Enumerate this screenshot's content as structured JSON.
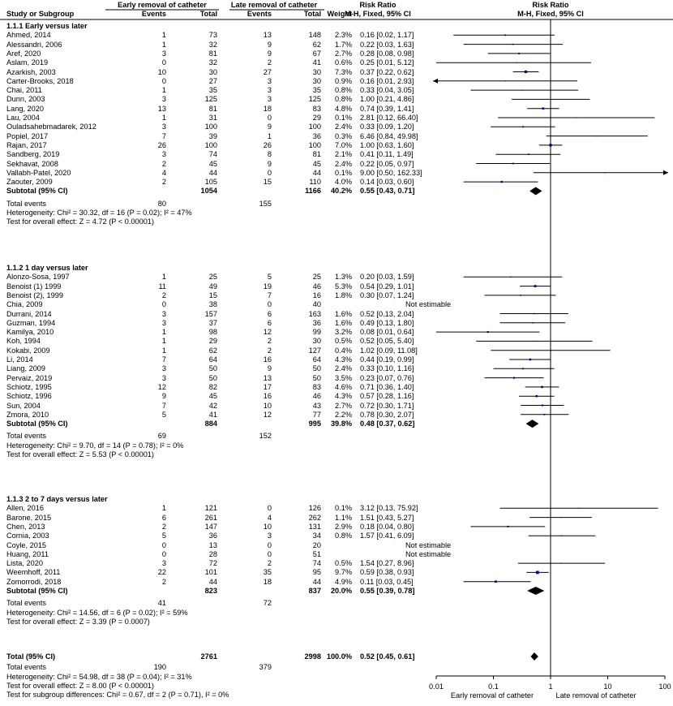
{
  "header": {
    "early_group": "Early removal of catheter",
    "late_group": "Late removal of catheter",
    "rr_col1": "Risk Ratio",
    "rr_col2": "Risk Ratio",
    "study_col": "Study or Subgroup",
    "events": "Events",
    "total": "Total",
    "events2": "Events",
    "total2": "Total",
    "weight": "Weight",
    "method1": "M-H, Fixed, 95% CI",
    "method2": "M-H, Fixed, 95% CI"
  },
  "subgroups": [
    {
      "title": "1.1.1 Early versus later",
      "studies": [
        {
          "name": "Ahmed, 2014",
          "e1": "1",
          "n1": "73",
          "e2": "13",
          "n2": "148",
          "w": "2.3%",
          "ci": "0.16 [0.02, 1.17]",
          "rr": 0.16,
          "lo": 0.02,
          "hi": 1.17
        },
        {
          "name": "Alessandri, 2006",
          "e1": "1",
          "n1": "32",
          "e2": "9",
          "n2": "62",
          "w": "1.7%",
          "ci": "0.22 [0.03, 1.63]",
          "rr": 0.22,
          "lo": 0.03,
          "hi": 1.63
        },
        {
          "name": "Aref, 2020",
          "e1": "3",
          "n1": "81",
          "e2": "9",
          "n2": "67",
          "w": "2.7%",
          "ci": "0.28 [0.08, 0.98]",
          "rr": 0.28,
          "lo": 0.08,
          "hi": 0.98
        },
        {
          "name": "Aslam, 2019",
          "e1": "0",
          "n1": "32",
          "e2": "2",
          "n2": "41",
          "w": "0.6%",
          "ci": "0.25 [0.01, 5.12]",
          "rr": 0.25,
          "lo": 0.01,
          "hi": 5.12
        },
        {
          "name": "Azarkish, 2003",
          "e1": "10",
          "n1": "30",
          "e2": "27",
          "n2": "30",
          "w": "7.3%",
          "ci": "0.37 [0.22, 0.62]",
          "rr": 0.37,
          "lo": 0.22,
          "hi": 0.62
        },
        {
          "name": "Carter-Brooks, 2018",
          "e1": "0",
          "n1": "27",
          "e2": "3",
          "n2": "30",
          "w": "0.9%",
          "ci": "0.16 [0.01, 2.93]",
          "rr": 0.16,
          "lo": 0.01,
          "hi": 2.93,
          "arrowLeft": true
        },
        {
          "name": "Chai, 2011",
          "e1": "1",
          "n1": "35",
          "e2": "3",
          "n2": "35",
          "w": "0.8%",
          "ci": "0.33 [0.04, 3.05]",
          "rr": 0.33,
          "lo": 0.04,
          "hi": 3.05
        },
        {
          "name": "Dunn, 2003",
          "e1": "3",
          "n1": "125",
          "e2": "3",
          "n2": "125",
          "w": "0.8%",
          "ci": "1.00 [0.21, 4.86]",
          "rr": 1.0,
          "lo": 0.21,
          "hi": 4.86
        },
        {
          "name": "Lang, 2020",
          "e1": "13",
          "n1": "81",
          "e2": "18",
          "n2": "83",
          "w": "4.8%",
          "ci": "0.74 [0.39, 1.41]",
          "rr": 0.74,
          "lo": 0.39,
          "hi": 1.41
        },
        {
          "name": "Lau, 2004",
          "e1": "1",
          "n1": "31",
          "e2": "0",
          "n2": "29",
          "w": "0.1%",
          "ci": "2.81 [0.12, 66.40]",
          "rr": 2.81,
          "lo": 0.12,
          "hi": 66.4
        },
        {
          "name": "Ouladsahebmadarek, 2012",
          "e1": "3",
          "n1": "100",
          "e2": "9",
          "n2": "100",
          "w": "2.4%",
          "ci": "0.33 [0.09, 1.20]",
          "rr": 0.33,
          "lo": 0.09,
          "hi": 1.2
        },
        {
          "name": "Popiel, 2017",
          "e1": "7",
          "n1": "39",
          "e2": "1",
          "n2": "36",
          "w": "0.3%",
          "ci": "6.46 [0.84, 49.98]",
          "rr": 6.46,
          "lo": 0.84,
          "hi": 49.98
        },
        {
          "name": "Rajan, 2017",
          "e1": "26",
          "n1": "100",
          "e2": "26",
          "n2": "100",
          "w": "7.0%",
          "ci": "1.00 [0.63, 1.60]",
          "rr": 1.0,
          "lo": 0.63,
          "hi": 1.6
        },
        {
          "name": "Sandberg, 2019",
          "e1": "3",
          "n1": "74",
          "e2": "8",
          "n2": "81",
          "w": "2.1%",
          "ci": "0.41 [0.11, 1.49]",
          "rr": 0.41,
          "lo": 0.11,
          "hi": 1.49
        },
        {
          "name": "Sekhavat, 2008",
          "e1": "2",
          "n1": "45",
          "e2": "9",
          "n2": "45",
          "w": "2.4%",
          "ci": "0.22 [0.05, 0.97]",
          "rr": 0.22,
          "lo": 0.05,
          "hi": 0.97
        },
        {
          "name": "Vallabh-Patel, 2020",
          "e1": "4",
          "n1": "44",
          "e2": "0",
          "n2": "44",
          "w": "0.1%",
          "ci": "9.00 [0.50, 162.33]",
          "rr": 9.0,
          "lo": 0.5,
          "hi": 162.33,
          "arrowRight": true
        },
        {
          "name": "Zaouter, 2009",
          "e1": "2",
          "n1": "105",
          "e2": "15",
          "n2": "110",
          "w": "4.0%",
          "ci": "0.14 [0.03, 0.60]",
          "rr": 0.14,
          "lo": 0.03,
          "hi": 0.6
        }
      ],
      "subtotal": {
        "label": "Subtotal (95% CI)",
        "n1": "1054",
        "n2": "1166",
        "w": "40.2%",
        "ci": "0.55 [0.43, 0.71]",
        "rr": 0.55,
        "lo": 0.43,
        "hi": 0.71
      },
      "events": {
        "label": "Total events",
        "e1": "80",
        "e2": "155"
      },
      "het": "Heterogeneity: Chi² = 30.32, df = 16 (P = 0.02); I² = 47%",
      "test": "Test for overall effect: Z = 4.72 (P < 0.00001)"
    },
    {
      "title": "1.1.2 1 day versus later",
      "studies": [
        {
          "name": "Alonzo-Sosa, 1997",
          "e1": "1",
          "n1": "25",
          "e2": "5",
          "n2": "25",
          "w": "1.3%",
          "ci": "0.20 [0.03, 1.59]",
          "rr": 0.2,
          "lo": 0.03,
          "hi": 1.59
        },
        {
          "name": "Benoist (1) 1999",
          "e1": "11",
          "n1": "49",
          "e2": "19",
          "n2": "46",
          "w": "5.3%",
          "ci": "0.54 [0.29, 1.01]",
          "rr": 0.54,
          "lo": 0.29,
          "hi": 1.01
        },
        {
          "name": "Benoist (2), 1999",
          "e1": "2",
          "n1": "15",
          "e2": "7",
          "n2": "16",
          "w": "1.8%",
          "ci": "0.30 [0.07, 1.24]",
          "rr": 0.3,
          "lo": 0.07,
          "hi": 1.24
        },
        {
          "name": "Chia, 2009",
          "e1": "0",
          "n1": "38",
          "e2": "0",
          "n2": "40",
          "w": "",
          "ci": "Not estimable"
        },
        {
          "name": "Durrani, 2014",
          "e1": "3",
          "n1": "157",
          "e2": "6",
          "n2": "163",
          "w": "1.6%",
          "ci": "0.52 [0.13, 2.04]",
          "rr": 0.52,
          "lo": 0.13,
          "hi": 2.04
        },
        {
          "name": "Guzman, 1994",
          "e1": "3",
          "n1": "37",
          "e2": "6",
          "n2": "36",
          "w": "1.6%",
          "ci": "0.49 [0.13, 1.80]",
          "rr": 0.49,
          "lo": 0.13,
          "hi": 1.8
        },
        {
          "name": "Kamilya, 2010",
          "e1": "1",
          "n1": "98",
          "e2": "12",
          "n2": "99",
          "w": "3.2%",
          "ci": "0.08 [0.01, 0.64]",
          "rr": 0.08,
          "lo": 0.01,
          "hi": 0.64
        },
        {
          "name": "Koh, 1994",
          "e1": "1",
          "n1": "29",
          "e2": "2",
          "n2": "30",
          "w": "0.5%",
          "ci": "0.52 [0.05, 5.40]",
          "rr": 0.52,
          "lo": 0.05,
          "hi": 5.4
        },
        {
          "name": "Kokabi, 2009",
          "e1": "1",
          "n1": "62",
          "e2": "2",
          "n2": "127",
          "w": "0.4%",
          "ci": "1.02 [0.09, 11.08]",
          "rr": 1.02,
          "lo": 0.09,
          "hi": 11.08
        },
        {
          "name": "Li, 2014",
          "e1": "7",
          "n1": "64",
          "e2": "16",
          "n2": "64",
          "w": "4.3%",
          "ci": "0.44 [0.19, 0.99]",
          "rr": 0.44,
          "lo": 0.19,
          "hi": 0.99
        },
        {
          "name": "Liang, 2009",
          "e1": "3",
          "n1": "50",
          "e2": "9",
          "n2": "50",
          "w": "2.4%",
          "ci": "0.33 [0.10, 1.16]",
          "rr": 0.33,
          "lo": 0.1,
          "hi": 1.16
        },
        {
          "name": "Pervaiz, 2019",
          "e1": "3",
          "n1": "50",
          "e2": "13",
          "n2": "50",
          "w": "3.5%",
          "ci": "0.23 [0.07, 0.76]",
          "rr": 0.23,
          "lo": 0.07,
          "hi": 0.76
        },
        {
          "name": "Schiotz, 1995",
          "e1": "12",
          "n1": "82",
          "e2": "17",
          "n2": "83",
          "w": "4.6%",
          "ci": "0.71 [0.36, 1.40]",
          "rr": 0.71,
          "lo": 0.36,
          "hi": 1.4
        },
        {
          "name": "Schiotz, 1996",
          "e1": "9",
          "n1": "45",
          "e2": "16",
          "n2": "46",
          "w": "4.3%",
          "ci": "0.57 [0.28, 1.16]",
          "rr": 0.57,
          "lo": 0.28,
          "hi": 1.16
        },
        {
          "name": "Sun, 2004",
          "e1": "7",
          "n1": "42",
          "e2": "10",
          "n2": "43",
          "w": "2.7%",
          "ci": "0.72 [0.30, 1.71]",
          "rr": 0.72,
          "lo": 0.3,
          "hi": 1.71
        },
        {
          "name": "Zmora, 2010",
          "e1": "5",
          "n1": "41",
          "e2": "12",
          "n2": "77",
          "w": "2.2%",
          "ci": "0.78 [0.30, 2.07]",
          "rr": 0.78,
          "lo": 0.3,
          "hi": 2.07
        }
      ],
      "subtotal": {
        "label": "Subtotal (95% CI)",
        "n1": "884",
        "n2": "995",
        "w": "39.8%",
        "ci": "0.48 [0.37, 0.62]",
        "rr": 0.48,
        "lo": 0.37,
        "hi": 0.62
      },
      "events": {
        "label": "Total events",
        "e1": "69",
        "e2": "152"
      },
      "het": "Heterogeneity: Chi² = 9.70, df = 14 (P = 0.78); I² = 0%",
      "test": "Test for overall effect: Z = 5.53 (P < 0.00001)"
    },
    {
      "title": "1.1.3 2 to 7 days versus later",
      "studies": [
        {
          "name": "Allen, 2016",
          "e1": "1",
          "n1": "121",
          "e2": "0",
          "n2": "126",
          "w": "0.1%",
          "ci": "3.12 [0.13, 75.92]",
          "rr": 3.12,
          "lo": 0.13,
          "hi": 75.92
        },
        {
          "name": "Barone, 2015",
          "e1": "6",
          "n1": "261",
          "e2": "4",
          "n2": "262",
          "w": "1.1%",
          "ci": "1.51 [0.43, 5.27]",
          "rr": 1.51,
          "lo": 0.43,
          "hi": 5.27
        },
        {
          "name": "Chen, 2013",
          "e1": "2",
          "n1": "147",
          "e2": "10",
          "n2": "131",
          "w": "2.9%",
          "ci": "0.18 [0.04, 0.80]",
          "rr": 0.18,
          "lo": 0.04,
          "hi": 0.8
        },
        {
          "name": "Cornia, 2003",
          "e1": "5",
          "n1": "36",
          "e2": "3",
          "n2": "34",
          "w": "0.8%",
          "ci": "1.57 [0.41, 6.09]",
          "rr": 1.57,
          "lo": 0.41,
          "hi": 6.09
        },
        {
          "name": "Coyle, 2015",
          "e1": "0",
          "n1": "13",
          "e2": "0",
          "n2": "20",
          "w": "",
          "ci": "Not estimable"
        },
        {
          "name": "Huang, 2011",
          "e1": "0",
          "n1": "28",
          "e2": "0",
          "n2": "51",
          "w": "",
          "ci": "Not estimable"
        },
        {
          "name": "Lista, 2020",
          "e1": "3",
          "n1": "72",
          "e2": "2",
          "n2": "74",
          "w": "0.5%",
          "ci": "1.54 [0.27, 8.96]",
          "rr": 1.54,
          "lo": 0.27,
          "hi": 8.96
        },
        {
          "name": "Weemhoff, 2011",
          "e1": "22",
          "n1": "101",
          "e2": "35",
          "n2": "95",
          "w": "9.7%",
          "ci": "0.59 [0.38, 0.93]",
          "rr": 0.59,
          "lo": 0.38,
          "hi": 0.93
        },
        {
          "name": "Zomorrodi, 2018",
          "e1": "2",
          "n1": "44",
          "e2": "18",
          "n2": "44",
          "w": "4.9%",
          "ci": "0.11 [0.03, 0.45]",
          "rr": 0.11,
          "lo": 0.03,
          "hi": 0.45
        }
      ],
      "subtotal": {
        "label": "Subtotal (95% CI)",
        "n1": "823",
        "n2": "837",
        "w": "20.0%",
        "ci": "0.55 [0.39, 0.78]",
        "rr": 0.55,
        "lo": 0.39,
        "hi": 0.78
      },
      "events": {
        "label": "Total events",
        "e1": "41",
        "e2": "72"
      },
      "het": "Heterogeneity: Chi² = 14.56, df = 6 (P = 0.02); I² = 59%",
      "test": "Test for overall effect: Z = 3.39 (P = 0.0007)"
    }
  ],
  "total": {
    "label": "Total (95% CI)",
    "n1": "2761",
    "n2": "2998",
    "w": "100.0%",
    "ci": "0.52 [0.45, 0.61]",
    "rr": 0.52,
    "lo": 0.45,
    "hi": 0.61
  },
  "total_events": {
    "label": "Total events",
    "e1": "190",
    "e2": "379"
  },
  "total_het": "Heterogeneity: Chi² = 54.98, df = 38 (P = 0.04); I² = 31%",
  "total_test": "Test for overall effect: Z = 8.00 (P < 0.00001)",
  "subgroup_test": "Test for subgroup differences: Chi² = 0.67, df = 2 (P = 0.71), I² = 0%",
  "axis": {
    "ticks": [
      "0.01",
      "0.1",
      "1",
      "10",
      "100"
    ],
    "left_label": "Early removal of catheter",
    "right_label": "Late removal of catheter"
  },
  "chart_data": {
    "type": "forest",
    "scale": "log",
    "xlim": [
      0.01,
      100
    ],
    "xticks": [
      0.01,
      0.1,
      1,
      10,
      100
    ],
    "null_line": 1,
    "marker_color": "#00008b",
    "line_color": "#000000"
  }
}
